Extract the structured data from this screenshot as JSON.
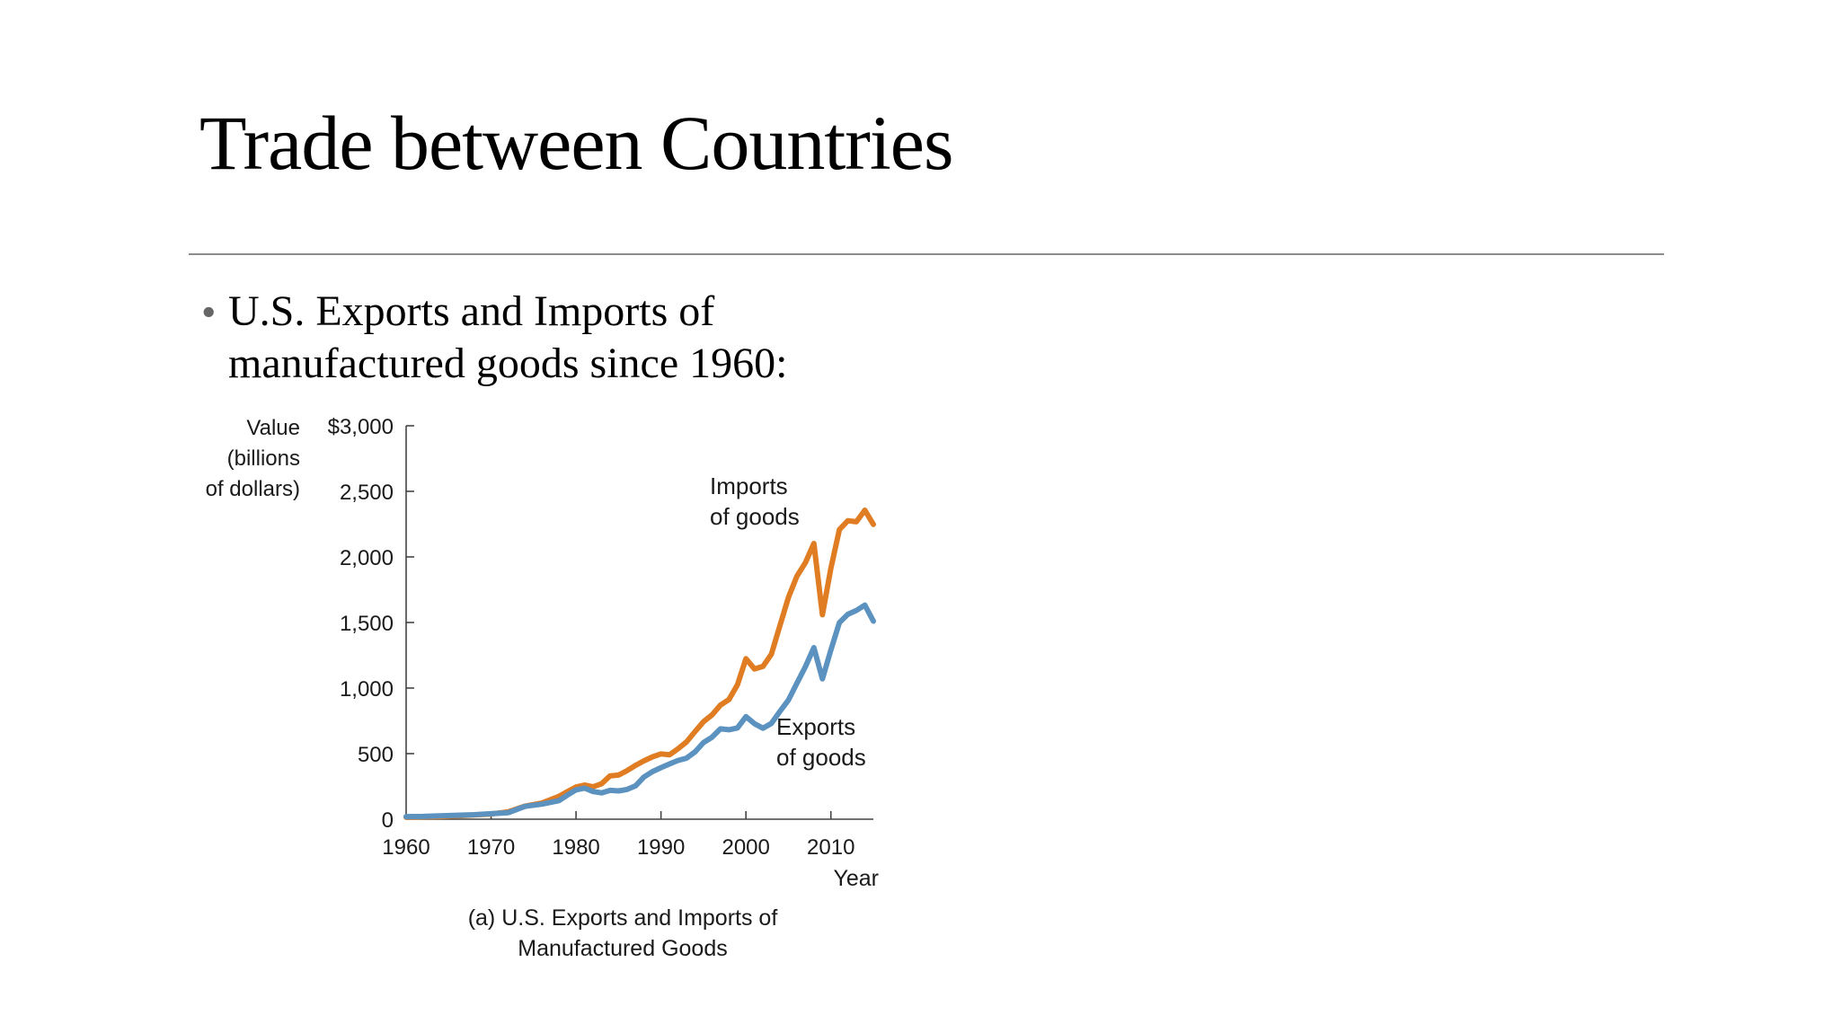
{
  "slide": {
    "title": "Trade between Countries",
    "bullet_lines": [
      "U.S. Exports and Imports of",
      "manufactured goods since 1960:"
    ]
  },
  "colors": {
    "imports": "#e07c22",
    "exports": "#5b92c0"
  },
  "chart_data": {
    "type": "line",
    "caption": [
      "(a) U.S. Exports and Imports of",
      "Manufactured Goods"
    ],
    "ylabel": [
      "Value",
      "(billions",
      "of dollars)"
    ],
    "xlabel": "Year",
    "ylim": [
      0,
      3000
    ],
    "xlim": [
      1960,
      2015
    ],
    "yticks": [
      0,
      500,
      1000,
      1500,
      2000,
      2500,
      3000
    ],
    "ytick_labels": [
      "0",
      "500",
      "1,000",
      "1,500",
      "2,000",
      "2,500",
      "$3,000"
    ],
    "xticks": [
      1960,
      1970,
      1980,
      1990,
      2000,
      2010
    ],
    "xtick_labels": [
      "1960",
      "1970",
      "1980",
      "1990",
      "2000",
      "2010"
    ],
    "grid": false,
    "series": [
      {
        "name": "Imports of goods",
        "label_lines": [
          "Imports",
          "of goods"
        ],
        "color": "#e07c22",
        "x": [
          1960,
          1962,
          1964,
          1966,
          1968,
          1970,
          1972,
          1974,
          1976,
          1978,
          1979,
          1980,
          1981,
          1982,
          1983,
          1984,
          1985,
          1986,
          1987,
          1988,
          1989,
          1990,
          1991,
          1992,
          1993,
          1994,
          1995,
          1996,
          1997,
          1998,
          1999,
          2000,
          2001,
          2002,
          2003,
          2004,
          2005,
          2006,
          2007,
          2008,
          2009,
          2010,
          2011,
          2012,
          2013,
          2014,
          2015
        ],
        "y": [
          15,
          18,
          20,
          26,
          33,
          40,
          56,
          100,
          124,
          175,
          210,
          245,
          260,
          247,
          270,
          330,
          336,
          370,
          410,
          445,
          475,
          498,
          491,
          536,
          589,
          668,
          743,
          795,
          870,
          912,
          1025,
          1224,
          1146,
          1165,
          1258,
          1476,
          1692,
          1853,
          1957,
          2103,
          1559,
          1913,
          2208,
          2276,
          2268,
          2356,
          2248
        ]
      },
      {
        "name": "Exports of goods",
        "label_lines": [
          "Exports",
          "of goods"
        ],
        "color": "#5b92c0",
        "x": [
          1960,
          1962,
          1964,
          1966,
          1968,
          1970,
          1972,
          1974,
          1976,
          1978,
          1979,
          1980,
          1981,
          1982,
          1983,
          1984,
          1985,
          1986,
          1987,
          1988,
          1989,
          1990,
          1991,
          1992,
          1993,
          1994,
          1995,
          1996,
          1997,
          1998,
          1999,
          2000,
          2001,
          2002,
          2003,
          2004,
          2005,
          2006,
          2007,
          2008,
          2009,
          2010,
          2011,
          2012,
          2013,
          2014,
          2015
        ],
        "y": [
          20,
          21,
          26,
          30,
          34,
          42,
          49,
          98,
          115,
          142,
          184,
          224,
          237,
          211,
          201,
          220,
          216,
          227,
          254,
          322,
          363,
          393,
          421,
          448,
          465,
          513,
          584,
          625,
          689,
          682,
          696,
          782,
          729,
          694,
          730,
          822,
          909,
          1037,
          1164,
          1308,
          1070,
          1290,
          1499,
          1562,
          1592,
          1633,
          1510
        ]
      }
    ]
  }
}
